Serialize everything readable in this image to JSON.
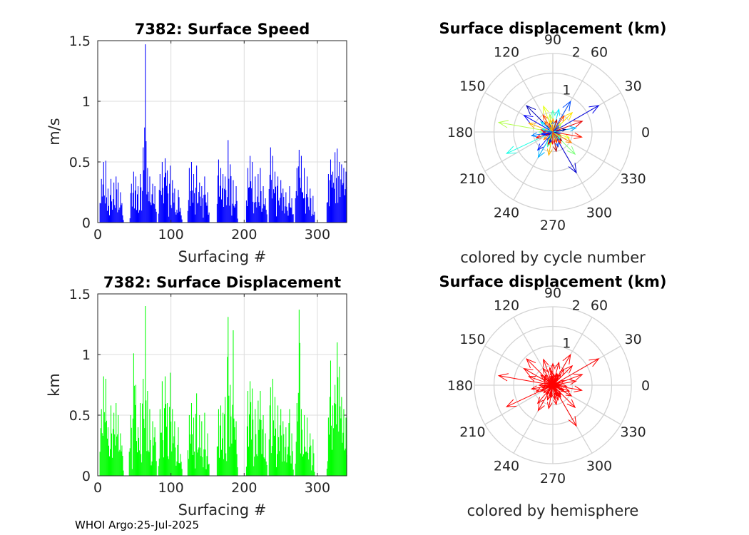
{
  "figure": {
    "footer": "WHOI Argo:25-Jul-2025"
  },
  "chart_data": [
    {
      "id": "speed",
      "type": "bar",
      "title": "7382: Surface Speed",
      "xlabel": "Surfacing #",
      "ylabel": "m/s",
      "xlim": [
        0,
        340
      ],
      "ylim": [
        0,
        1.5
      ],
      "xticks": [
        "0",
        "100",
        "200",
        "300"
      ],
      "yticks": [
        "0",
        "0.5",
        "1",
        "1.5"
      ],
      "grid": true,
      "color": "#0000ff",
      "peaks": [
        [
          5,
          0.36
        ],
        [
          8,
          0.5
        ],
        [
          11,
          0.51
        ],
        [
          14,
          0.28
        ],
        [
          18,
          0.36
        ],
        [
          22,
          0.33
        ],
        [
          25,
          0.38
        ],
        [
          28,
          0.33
        ],
        [
          31,
          0.25
        ],
        [
          33,
          0.16
        ],
        [
          46,
          0.32
        ],
        [
          49,
          0.42
        ],
        [
          52,
          0.38
        ],
        [
          55,
          0.3
        ],
        [
          58,
          0.4
        ],
        [
          62,
          0.62
        ],
        [
          65,
          1.47
        ],
        [
          68,
          0.45
        ],
        [
          71,
          0.38
        ],
        [
          75,
          0.32
        ],
        [
          78,
          0.3
        ],
        [
          85,
          0.4
        ],
        [
          88,
          0.5
        ],
        [
          92,
          0.53
        ],
        [
          95,
          0.43
        ],
        [
          99,
          0.47
        ],
        [
          102,
          0.35
        ],
        [
          105,
          0.28
        ],
        [
          110,
          0.27
        ],
        [
          113,
          0.12
        ],
        [
          125,
          0.45
        ],
        [
          128,
          0.5
        ],
        [
          131,
          0.4
        ],
        [
          135,
          0.47
        ],
        [
          139,
          0.33
        ],
        [
          142,
          0.3
        ],
        [
          146,
          0.38
        ],
        [
          150,
          0.25
        ],
        [
          165,
          0.52
        ],
        [
          168,
          0.45
        ],
        [
          171,
          0.4
        ],
        [
          174,
          0.38
        ],
        [
          178,
          0.68
        ],
        [
          181,
          0.48
        ],
        [
          185,
          0.35
        ],
        [
          189,
          0.3
        ],
        [
          205,
          0.45
        ],
        [
          208,
          0.55
        ],
        [
          211,
          0.5
        ],
        [
          215,
          0.38
        ],
        [
          219,
          0.4
        ],
        [
          222,
          0.45
        ],
        [
          226,
          0.3
        ],
        [
          229,
          0.2
        ],
        [
          236,
          0.62
        ],
        [
          239,
          0.55
        ],
        [
          242,
          0.42
        ],
        [
          246,
          0.38
        ],
        [
          250,
          0.35
        ],
        [
          253,
          0.28
        ],
        [
          257,
          0.25
        ],
        [
          262,
          0.3
        ],
        [
          265,
          0.2
        ],
        [
          272,
          0.45
        ],
        [
          275,
          0.6
        ],
        [
          278,
          0.55
        ],
        [
          282,
          0.45
        ],
        [
          286,
          0.38
        ],
        [
          290,
          0.28
        ],
        [
          294,
          0.22
        ],
        [
          315,
          0.4
        ],
        [
          318,
          0.52
        ],
        [
          321,
          0.42
        ],
        [
          324,
          0.58
        ],
        [
          327,
          0.61
        ],
        [
          330,
          0.5
        ],
        [
          333,
          0.48
        ],
        [
          336,
          0.45
        ],
        [
          339,
          0.42
        ]
      ]
    },
    {
      "id": "displacement",
      "type": "bar",
      "title": "7382: Surface Displacement",
      "xlabel": "Surfacing #",
      "ylabel": "km",
      "xlim": [
        0,
        340
      ],
      "ylim": [
        0,
        1.5
      ],
      "xticks": [
        "0",
        "100",
        "200",
        "300"
      ],
      "yticks": [
        "0",
        "0.5",
        "1",
        "1.5"
      ],
      "grid": true,
      "color": "#00ff00",
      "peaks": [
        [
          5,
          0.55
        ],
        [
          8,
          0.82
        ],
        [
          11,
          0.8
        ],
        [
          14,
          0.4
        ],
        [
          18,
          0.58
        ],
        [
          22,
          0.52
        ],
        [
          25,
          0.6
        ],
        [
          28,
          0.5
        ],
        [
          31,
          0.35
        ],
        [
          33,
          0.25
        ],
        [
          45,
          0.5
        ],
        [
          49,
          1.01
        ],
        [
          52,
          0.75
        ],
        [
          55,
          0.4
        ],
        [
          58,
          0.6
        ],
        [
          62,
          0.8
        ],
        [
          65,
          1.4
        ],
        [
          68,
          0.7
        ],
        [
          71,
          0.55
        ],
        [
          75,
          0.45
        ],
        [
          78,
          0.4
        ],
        [
          85,
          0.55
        ],
        [
          88,
          0.78
        ],
        [
          92,
          0.82
        ],
        [
          95,
          0.6
        ],
        [
          99,
          0.85
        ],
        [
          102,
          0.55
        ],
        [
          105,
          0.45
        ],
        [
          110,
          0.4
        ],
        [
          113,
          0.18
        ],
        [
          125,
          0.5
        ],
        [
          128,
          0.6
        ],
        [
          131,
          0.48
        ],
        [
          135,
          0.68
        ],
        [
          139,
          0.5
        ],
        [
          142,
          0.45
        ],
        [
          146,
          0.52
        ],
        [
          150,
          0.35
        ],
        [
          165,
          0.55
        ],
        [
          168,
          0.58
        ],
        [
          171,
          0.52
        ],
        [
          174,
          0.65
        ],
        [
          178,
          1.31
        ],
        [
          181,
          0.75
        ],
        [
          185,
          1.2
        ],
        [
          189,
          0.45
        ],
        [
          205,
          0.7
        ],
        [
          208,
          0.78
        ],
        [
          211,
          0.72
        ],
        [
          215,
          0.55
        ],
        [
          219,
          0.62
        ],
        [
          222,
          0.7
        ],
        [
          226,
          0.5
        ],
        [
          229,
          0.35
        ],
        [
          236,
          0.73
        ],
        [
          239,
          0.8
        ],
        [
          242,
          0.65
        ],
        [
          246,
          0.58
        ],
        [
          250,
          0.55
        ],
        [
          253,
          0.45
        ],
        [
          257,
          0.4
        ],
        [
          262,
          0.55
        ],
        [
          265,
          0.35
        ],
        [
          272,
          0.6
        ],
        [
          275,
          1.37
        ],
        [
          278,
          0.55
        ],
        [
          282,
          0.5
        ],
        [
          286,
          0.48
        ],
        [
          290,
          0.35
        ],
        [
          294,
          0.3
        ],
        [
          315,
          0.48
        ],
        [
          318,
          0.95
        ],
        [
          321,
          0.58
        ],
        [
          324,
          0.75
        ],
        [
          327,
          1.1
        ],
        [
          330,
          0.9
        ],
        [
          333,
          0.65
        ],
        [
          336,
          0.55
        ],
        [
          339,
          0.48
        ]
      ]
    },
    {
      "id": "polar-cycle",
      "type": "scatter",
      "title": "Surface displacement (km)",
      "xlabel": "colored by cycle number",
      "rlim": [
        0,
        2
      ],
      "rticks": [
        "1",
        "2"
      ],
      "theta_ticks": [
        "0",
        "30",
        "60",
        "90",
        "120",
        "150",
        "180",
        "210",
        "240",
        "270",
        "300",
        "330"
      ],
      "vectors": [
        [
          170,
          1.4,
          0.55
        ],
        [
          30,
          1.35,
          0.1
        ],
        [
          205,
          1.3,
          0.4
        ],
        [
          300,
          1.2,
          0.08
        ],
        [
          135,
          0.95,
          0.05
        ],
        [
          150,
          0.85,
          0.12
        ],
        [
          60,
          0.9,
          0.2
        ],
        [
          90,
          0.55,
          0.45
        ],
        [
          110,
          0.7,
          0.6
        ],
        [
          240,
          0.75,
          0.3
        ],
        [
          260,
          0.6,
          0.7
        ],
        [
          315,
          0.8,
          0.5
        ],
        [
          350,
          0.75,
          0.85
        ],
        [
          20,
          0.8,
          0.9
        ],
        [
          45,
          0.7,
          0.65
        ],
        [
          75,
          0.6,
          0.35
        ],
        [
          120,
          0.5,
          0.8
        ],
        [
          190,
          0.55,
          0.25
        ],
        [
          230,
          0.6,
          0.15
        ],
        [
          280,
          0.5,
          0.95
        ],
        [
          330,
          0.55,
          0.75
        ],
        [
          10,
          0.6,
          0.3
        ],
        [
          100,
          0.45,
          0.55
        ],
        [
          160,
          0.65,
          0.7
        ],
        [
          200,
          0.45,
          0.88
        ],
        [
          250,
          0.4,
          0.45
        ],
        [
          290,
          0.4,
          0.2
        ],
        [
          340,
          0.45,
          0.6
        ],
        [
          55,
          0.5,
          0.8
        ],
        [
          140,
          0.4,
          0.35
        ],
        [
          180,
          0.35,
          0.5
        ],
        [
          220,
          0.3,
          0.75
        ]
      ]
    },
    {
      "id": "polar-hemisphere",
      "type": "scatter",
      "title": "Surface displacement (km)",
      "xlabel": "colored by hemisphere",
      "rlim": [
        0,
        2
      ],
      "rticks": [
        "1",
        "2"
      ],
      "theta_ticks": [
        "0",
        "30",
        "60",
        "90",
        "120",
        "150",
        "180",
        "210",
        "240",
        "270",
        "300",
        "330"
      ],
      "color": "#ff0000",
      "vectors": [
        [
          170,
          1.4
        ],
        [
          30,
          1.35
        ],
        [
          205,
          1.3
        ],
        [
          300,
          1.2
        ],
        [
          135,
          0.95
        ],
        [
          150,
          0.85
        ],
        [
          60,
          0.9
        ],
        [
          90,
          0.55
        ],
        [
          110,
          0.7
        ],
        [
          240,
          0.75
        ],
        [
          260,
          0.6
        ],
        [
          315,
          0.8
        ],
        [
          350,
          0.75
        ],
        [
          20,
          0.8
        ],
        [
          45,
          0.7
        ],
        [
          75,
          0.6
        ],
        [
          120,
          0.5
        ],
        [
          190,
          0.55
        ],
        [
          230,
          0.6
        ],
        [
          280,
          0.5
        ],
        [
          330,
          0.55
        ],
        [
          10,
          0.6
        ],
        [
          100,
          0.45
        ],
        [
          160,
          0.65
        ],
        [
          200,
          0.45
        ],
        [
          250,
          0.4
        ],
        [
          290,
          0.4
        ],
        [
          340,
          0.45
        ],
        [
          55,
          0.5
        ],
        [
          140,
          0.4
        ],
        [
          180,
          0.35
        ],
        [
          220,
          0.3
        ]
      ]
    }
  ]
}
